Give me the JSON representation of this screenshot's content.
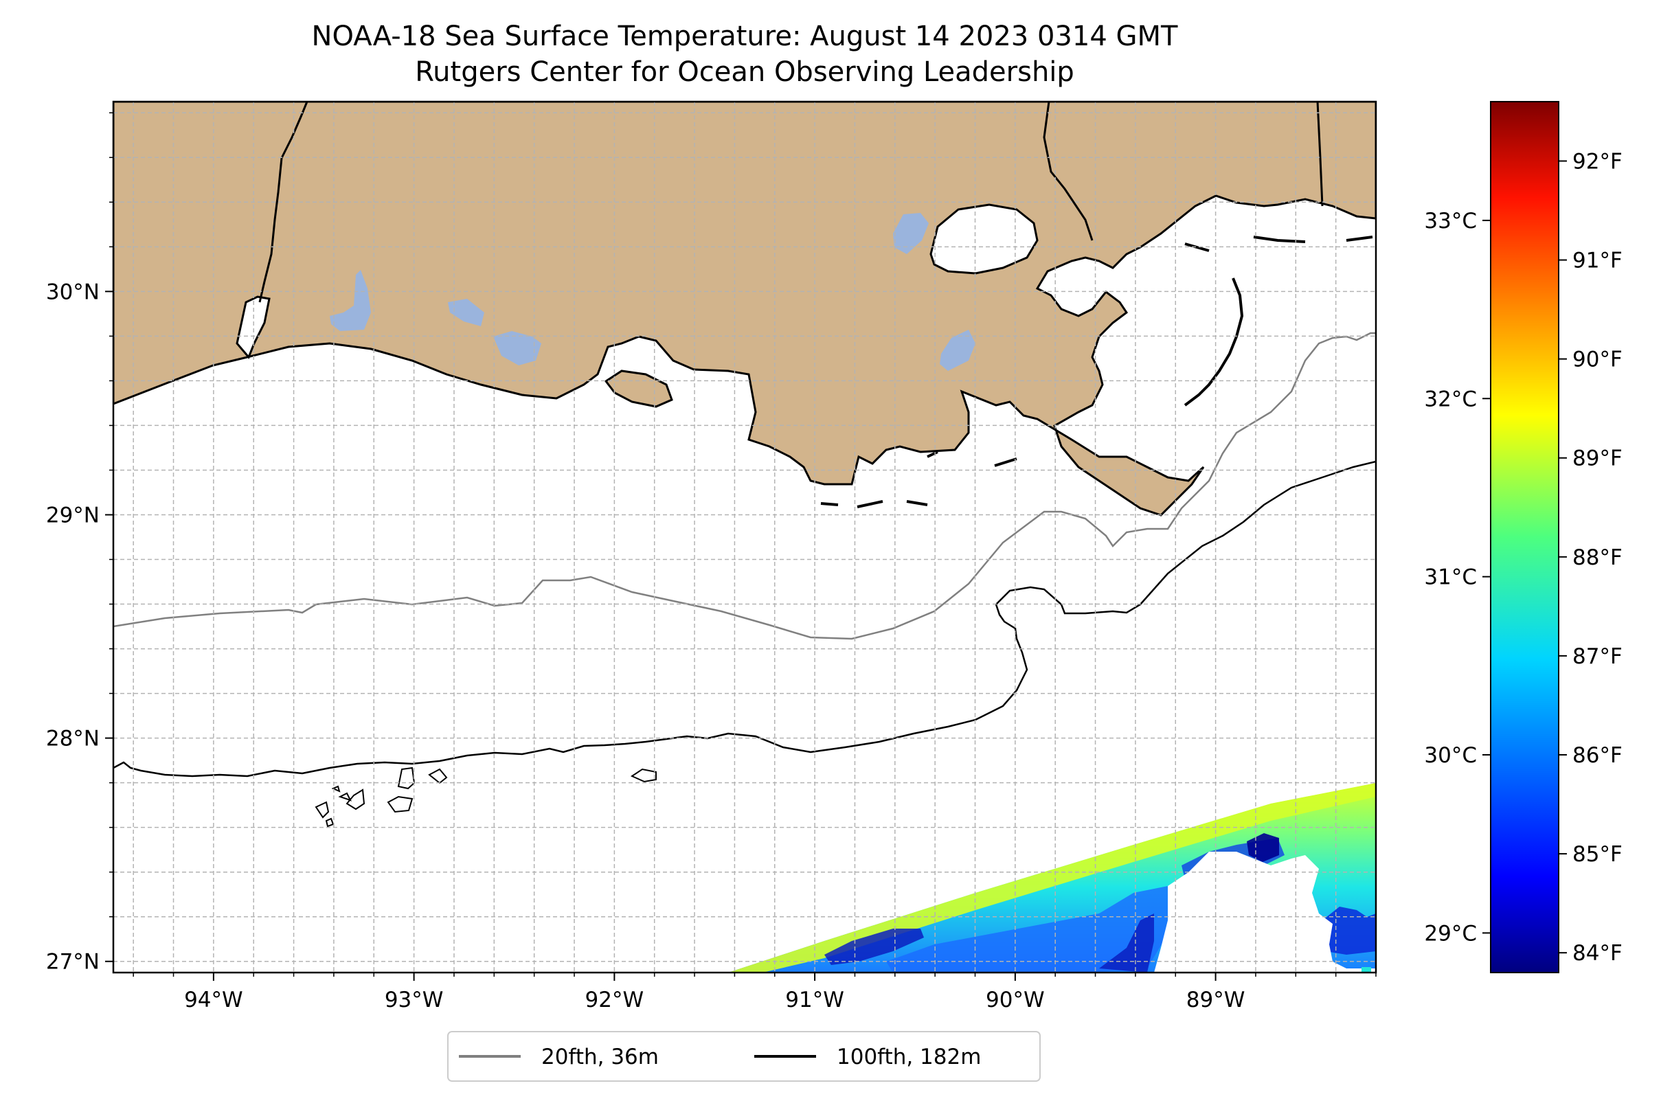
{
  "title": "NOAA-18 Sea Surface Temperature: August 14 2023 0314 GMT",
  "subtitle": "Rutgers Center for Ocean Observing Leadership",
  "map": {
    "lon_range": [
      -94.5,
      -88.2
    ],
    "lat_range": [
      26.95,
      30.85
    ],
    "lon_labels": [
      {
        "value": -94,
        "text": "94°W"
      },
      {
        "value": -93,
        "text": "93°W"
      },
      {
        "value": -92,
        "text": "92°W"
      },
      {
        "value": -91,
        "text": "91°W"
      },
      {
        "value": -90,
        "text": "90°W"
      },
      {
        "value": -89,
        "text": "89°W"
      }
    ],
    "lat_labels": [
      {
        "value": 30,
        "text": "30°N"
      },
      {
        "value": 29,
        "text": "29°N"
      },
      {
        "value": 28,
        "text": "28°N"
      },
      {
        "value": 27,
        "text": "27°N"
      }
    ],
    "grid": true,
    "land_color": "#d2b48c",
    "lake_color": "#9ab4dd",
    "ocean_color": "#ffffff"
  },
  "legend": {
    "placement": "bottom-center",
    "items": [
      {
        "label": "20fth, 36m",
        "color": "#808080"
      },
      {
        "label": "100fth, 182m",
        "color": "#000000"
      }
    ]
  },
  "colorbar": {
    "colormap": "jet",
    "range_f": [
      83.8,
      92.6
    ],
    "celsius_labels": [
      {
        "value_c": 29,
        "text": "29°C"
      },
      {
        "value_c": 30,
        "text": "30°C"
      },
      {
        "value_c": 31,
        "text": "31°C"
      },
      {
        "value_c": 32,
        "text": "32°C"
      },
      {
        "value_c": 33,
        "text": "33°C"
      }
    ],
    "fahrenheit_labels": [
      {
        "value_f": 84,
        "text": "84°F"
      },
      {
        "value_f": 85,
        "text": "85°F"
      },
      {
        "value_f": 86,
        "text": "86°F"
      },
      {
        "value_f": 87,
        "text": "87°F"
      },
      {
        "value_f": 88,
        "text": "88°F"
      },
      {
        "value_f": 89,
        "text": "89°F"
      },
      {
        "value_f": 90,
        "text": "90°F"
      },
      {
        "value_f": 91,
        "text": "91°F"
      },
      {
        "value_f": 92,
        "text": "92°F"
      }
    ]
  }
}
